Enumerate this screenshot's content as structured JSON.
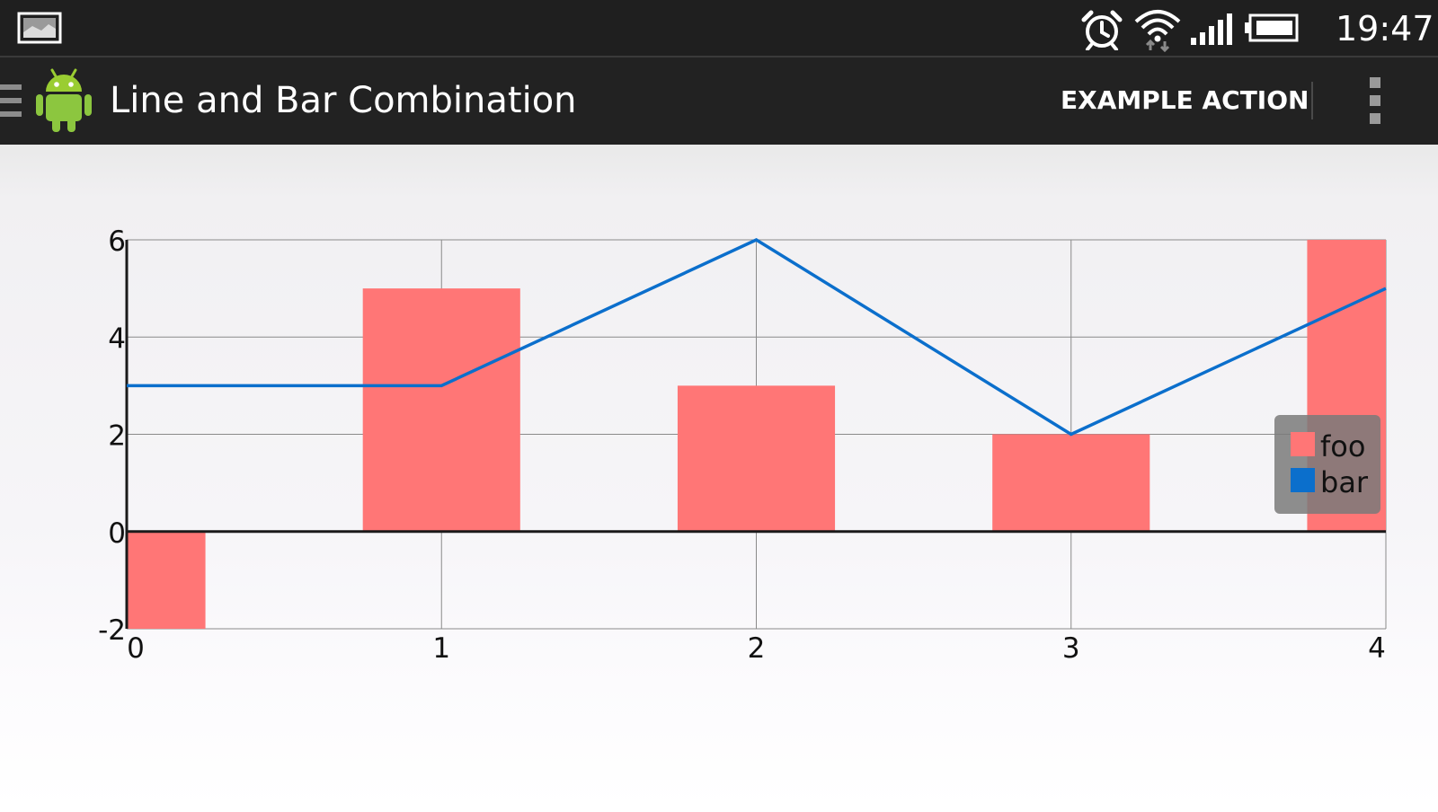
{
  "status_bar": {
    "time": "19:47",
    "icons": [
      "gallery-icon",
      "alarm-icon",
      "wifi-icon",
      "signal-icon",
      "battery-icon"
    ]
  },
  "action_bar": {
    "title": "Line and Bar Combination",
    "action_label": "EXAMPLE ACTION",
    "icons": [
      "menu-icon",
      "android-icon",
      "overflow-menu-icon"
    ]
  },
  "chart_data": {
    "type": "bar",
    "x": [
      0,
      1,
      2,
      3,
      4
    ],
    "x_tick_labels": [
      "0",
      "1",
      "2",
      "3",
      "4"
    ],
    "y_tick_labels": [
      "-2",
      "0",
      "2",
      "4",
      "6"
    ],
    "ylim": [
      -2,
      6
    ],
    "xlim": [
      0,
      4
    ],
    "grid": true,
    "legend_position": "right",
    "series": [
      {
        "name": "foo",
        "type": "bar",
        "color": "#ff7676",
        "values": [
          -2,
          5,
          3,
          2,
          6
        ]
      },
      {
        "name": "bar",
        "type": "line",
        "color": "#0b6fcc",
        "values": [
          3,
          3,
          6,
          2,
          5
        ]
      }
    ]
  }
}
